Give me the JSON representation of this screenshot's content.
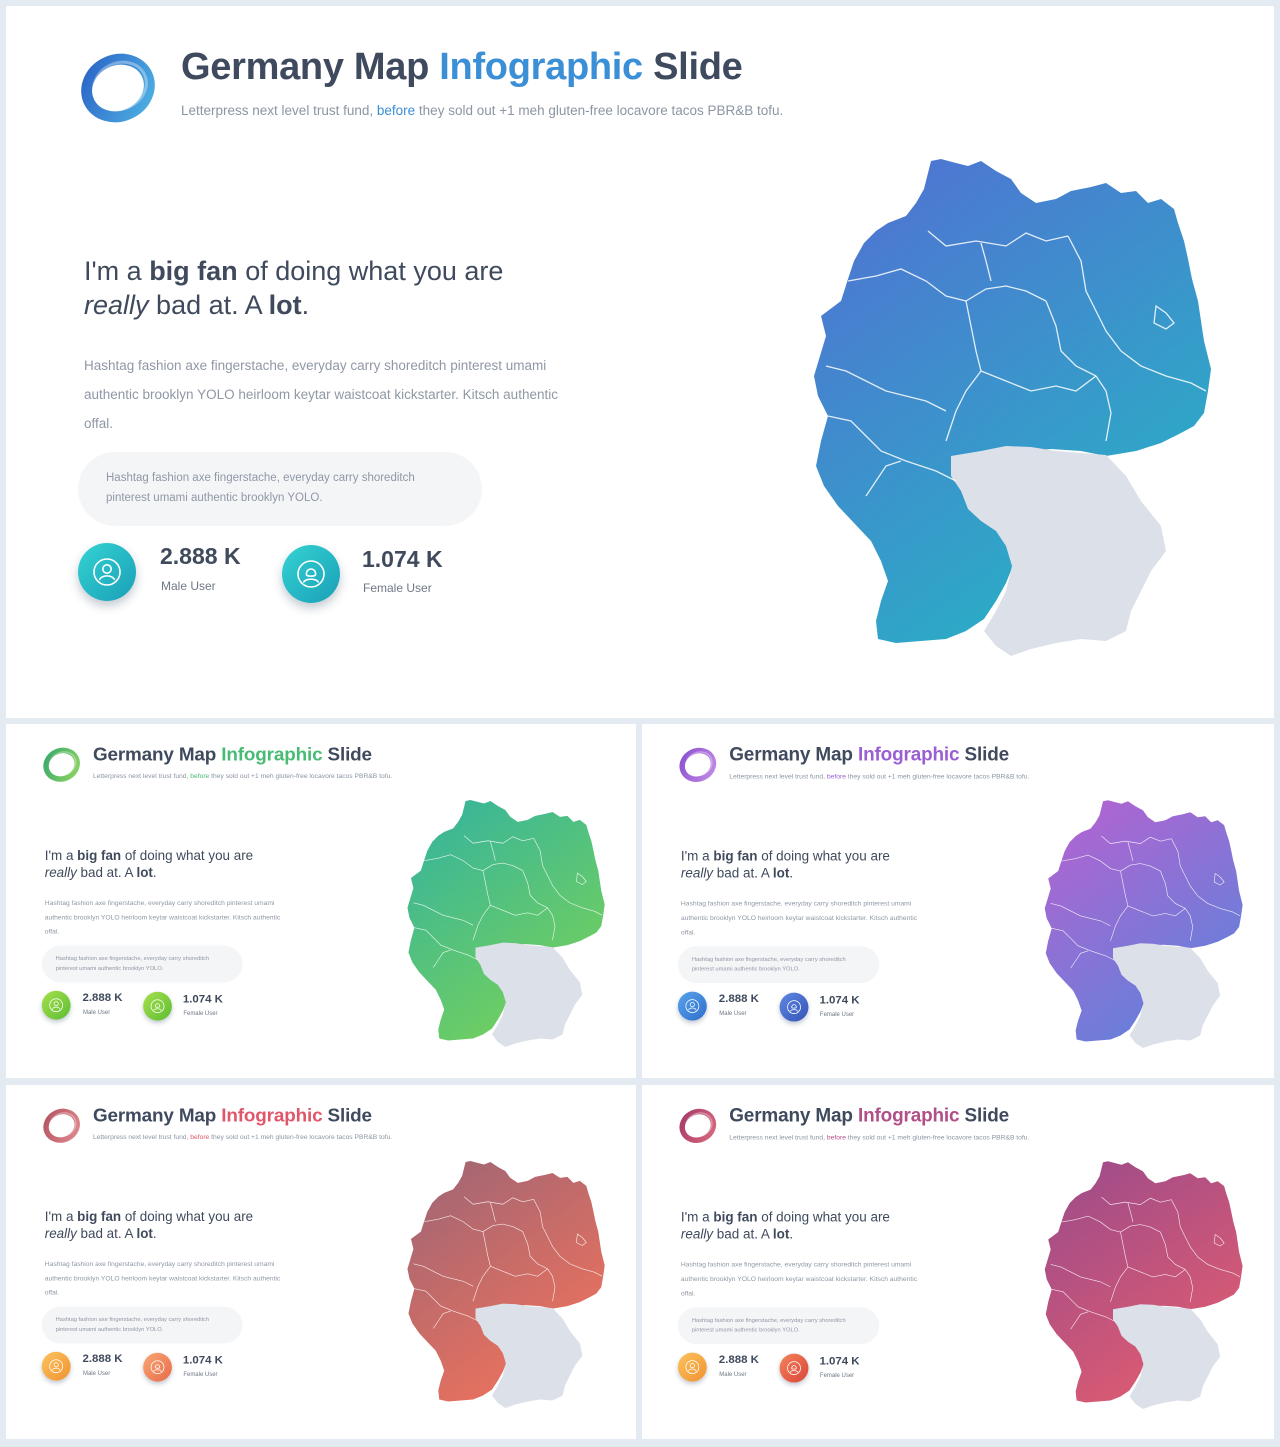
{
  "slide": {
    "title_part1": "Germany Map",
    "title_accent": "Infographic",
    "title_part2": "Slide",
    "subtitle_before": "Letterpress next level trust fund,",
    "subtitle_accent": "before",
    "subtitle_after": "they sold out +1 meh gluten-free locavore tacos PBR&B tofu.",
    "headline": {
      "w1": "I'm a",
      "b1": "big fan",
      "w2": "of doing what you are",
      "i1": "really",
      "w3": "bad at. A",
      "b2": "lot",
      "w4": "."
    },
    "paragraph": "Hashtag fashion axe fingerstache, everyday carry shoreditch pinterest umami authentic brooklyn YOLO heirloom keytar waistcoat kickstarter. Kitsch authentic offal.",
    "quote": "Hashtag fashion axe fingerstache, everyday carry shoreditch pinterest umami authentic brooklyn YOLO.",
    "stats": [
      {
        "value": "2.888 K",
        "label": "Male User",
        "icon": "user-icon"
      },
      {
        "value": "1.074 K",
        "label": "Female User",
        "icon": "user-icon"
      }
    ]
  },
  "variants": [
    {
      "name": "blue",
      "accent": "#3b8fd6",
      "map_from": "#4f74d2",
      "map_to": "#25b6c4",
      "icon_from": "#34d3d3",
      "icon_to": "#1a9fb7",
      "icon2_from": "#34d3d3",
      "icon2_to": "#1a9fb7",
      "ring_from": "#2a63c6",
      "ring_to": "#4fb2e4"
    },
    {
      "name": "green",
      "accent": "#48bb74",
      "map_from": "#38b59a",
      "map_to": "#7ad357",
      "icon_from": "#a6e04c",
      "icon_to": "#5cbd33",
      "icon2_from": "#a6e04c",
      "icon2_to": "#5cbd33",
      "ring_from": "#36a86b",
      "ring_to": "#8fd563"
    },
    {
      "name": "purple",
      "accent": "#9b5fd4",
      "map_from": "#b064d1",
      "map_to": "#5b84db",
      "icon_from": "#59a3ea",
      "icon_to": "#2f6fcd",
      "icon2_from": "#5f88e2",
      "icon2_to": "#3454b8",
      "ring_from": "#8a4fd0",
      "ring_to": "#c48be6"
    },
    {
      "name": "coral",
      "accent": "#e0566a",
      "map_from": "#a36674",
      "map_to": "#f5735a",
      "icon_from": "#fbc35e",
      "icon_to": "#f09230",
      "icon2_from": "#f8a874",
      "icon2_to": "#e86a4a",
      "ring_from": "#b45260",
      "ring_to": "#e08a8f"
    },
    {
      "name": "berry",
      "accent": "#b14f88",
      "map_from": "#a04c8a",
      "map_to": "#e45d6e",
      "icon_from": "#fbc35e",
      "icon_to": "#f09230",
      "icon2_from": "#f5845a",
      "icon2_to": "#d9443a",
      "ring_from": "#a83a6a",
      "ring_to": "#d8697d"
    }
  ]
}
